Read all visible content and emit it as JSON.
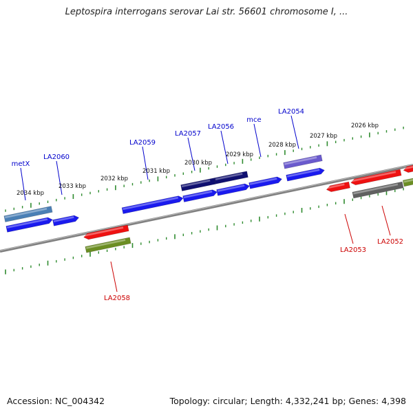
{
  "title": "Leptospira interrogans serovar Lai str. 56601 chromosome I, ...",
  "footer": {
    "accession": "Accession: NC_004342",
    "topology": "Topology: circular; Length: 4,332,241 bp; Genes: 4,398"
  },
  "colors": {
    "ruler_tick": "#2e8b2e",
    "backbone": "#808080",
    "forward_label": "#0000cc",
    "reverse_label": "#cc0000",
    "blue": "#1a1aee",
    "steelblue": "#4a7fb5",
    "navy": "#101070",
    "slateblue": "#6a5acd",
    "red": "#ee1111",
    "olive": "#6b8e23",
    "gray": "#606060"
  },
  "kbp_labels": [
    {
      "text": "2034 kbp",
      "kbp": 2034,
      "side": "upper"
    },
    {
      "text": "2033 kbp",
      "kbp": 2033,
      "side": "upper"
    },
    {
      "text": "2032 kbp",
      "kbp": 2032,
      "side": "upper"
    },
    {
      "text": "2031 kbp",
      "kbp": 2031,
      "side": "upper"
    },
    {
      "text": "2030 kbp",
      "kbp": 2030,
      "side": "upper"
    },
    {
      "text": "2029 kbp",
      "kbp": 2029,
      "side": "upper"
    },
    {
      "text": "2028 kbp",
      "kbp": 2028,
      "side": "upper"
    },
    {
      "text": "2027 kbp",
      "kbp": 2027,
      "side": "upper"
    },
    {
      "text": "2026 kbp",
      "kbp": 2026,
      "side": "upper"
    }
  ],
  "genes": [
    {
      "label": "metX",
      "strand": "forward",
      "color": "blue"
    },
    {
      "label": "LA2060",
      "strand": "forward",
      "color": "blue"
    },
    {
      "label": "LA2059",
      "strand": "forward",
      "color": "blue"
    },
    {
      "label": "LA2057",
      "strand": "forward",
      "color": "blue"
    },
    {
      "label": "LA2056",
      "strand": "forward",
      "color": "blue"
    },
    {
      "label": "mce",
      "strand": "forward",
      "color": "blue"
    },
    {
      "label": "LA2054",
      "strand": "forward",
      "color": "blue"
    },
    {
      "label": "LA2058",
      "strand": "reverse",
      "color": "red"
    },
    {
      "label": "LA2053",
      "strand": "reverse",
      "color": "red"
    },
    {
      "label": "LA2052",
      "strand": "reverse",
      "color": "red"
    }
  ]
}
